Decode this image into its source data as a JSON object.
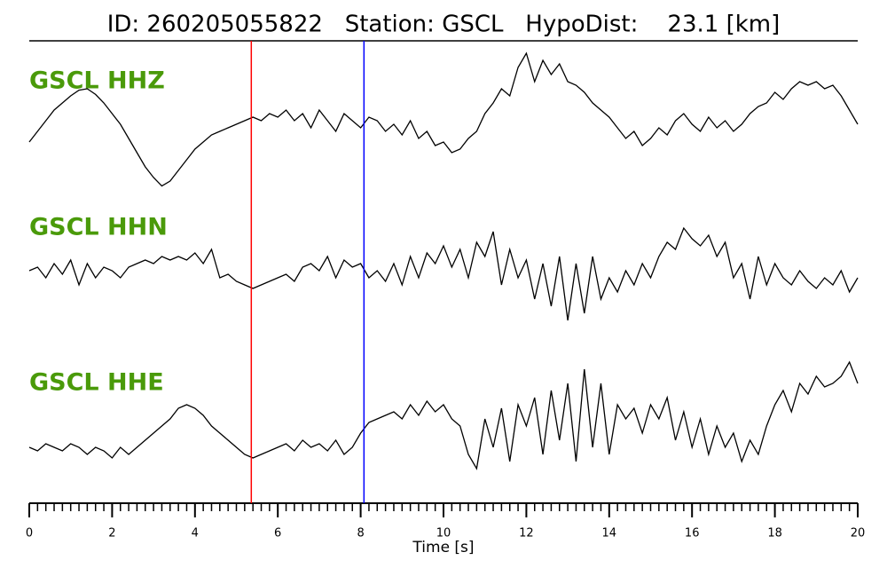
{
  "chart_data": {
    "type": "line",
    "title": "ID: 260205055822   Station: GSCL   HypoDist:    23.1 [km]",
    "xlabel": "Time [s]",
    "xlim": [
      0,
      20
    ],
    "xticks": [
      0,
      2,
      4,
      6,
      8,
      10,
      12,
      14,
      16,
      18,
      20
    ],
    "xminor_step": 0.2,
    "ylim": [
      -1,
      1
    ],
    "label_color": "#4a9a0a",
    "x": [
      0,
      0.2,
      0.4,
      0.6,
      0.8,
      1,
      1.2,
      1.4,
      1.6,
      1.8,
      2,
      2.2,
      2.4,
      2.6,
      2.8,
      3,
      3.2,
      3.4,
      3.6,
      3.8,
      4,
      4.2,
      4.4,
      4.6,
      4.8,
      5,
      5.2,
      5.4,
      5.6,
      5.8,
      6,
      6.2,
      6.4,
      6.6,
      6.8,
      7,
      7.2,
      7.4,
      7.6,
      7.8,
      8,
      8.2,
      8.4,
      8.6,
      8.8,
      9,
      9.2,
      9.4,
      9.6,
      9.8,
      10,
      10.2,
      10.4,
      10.6,
      10.8,
      11,
      11.2,
      11.4,
      11.6,
      11.8,
      12,
      12.2,
      12.4,
      12.6,
      12.8,
      13,
      13.2,
      13.4,
      13.6,
      13.8,
      14,
      14.2,
      14.4,
      14.6,
      14.8,
      15,
      15.2,
      15.4,
      15.6,
      15.8,
      16,
      16.2,
      16.4,
      16.6,
      16.8,
      17,
      17.2,
      17.4,
      17.6,
      17.8,
      18,
      18.2,
      18.4,
      18.6,
      18.8,
      19,
      19.2,
      19.4,
      19.6,
      19.8,
      20
    ],
    "series": [
      {
        "name": "GSCL HHZ",
        "color": "#000000",
        "values": [
          -0.25,
          -0.1,
          0.05,
          0.2,
          0.3,
          0.4,
          0.48,
          0.5,
          0.42,
          0.3,
          0.15,
          0,
          -0.2,
          -0.4,
          -0.6,
          -0.75,
          -0.87,
          -0.8,
          -0.65,
          -0.5,
          -0.35,
          -0.25,
          -0.15,
          -0.1,
          -0.05,
          0,
          0.05,
          0.1,
          0.05,
          0.15,
          0.1,
          0.2,
          0.05,
          0.15,
          -0.05,
          0.2,
          0.05,
          -0.1,
          0.15,
          0.05,
          -0.05,
          0.1,
          0.05,
          -0.1,
          0,
          -0.15,
          0.05,
          -0.2,
          -0.1,
          -0.3,
          -0.25,
          -0.4,
          -0.35,
          -0.2,
          -0.1,
          0.15,
          0.3,
          0.5,
          0.4,
          0.8,
          1,
          0.6,
          0.9,
          0.7,
          0.85,
          0.6,
          0.55,
          0.45,
          0.3,
          0.2,
          0.1,
          -0.05,
          -0.2,
          -0.1,
          -0.3,
          -0.2,
          -0.05,
          -0.15,
          0.05,
          0.15,
          0,
          -0.1,
          0.1,
          -0.05,
          0.05,
          -0.1,
          0,
          0.15,
          0.25,
          0.3,
          0.45,
          0.35,
          0.5,
          0.6,
          0.55,
          0.6,
          0.5,
          0.55,
          0.4,
          0.2,
          0
        ]
      },
      {
        "name": "GSCL HHN",
        "color": "#000000",
        "values": [
          0,
          0.05,
          -0.1,
          0.1,
          -0.05,
          0.15,
          -0.2,
          0.1,
          -0.1,
          0.05,
          0,
          -0.1,
          0.05,
          0.1,
          0.15,
          0.1,
          0.2,
          0.15,
          0.2,
          0.15,
          0.25,
          0.1,
          0.3,
          -0.1,
          -0.05,
          -0.15,
          -0.2,
          -0.25,
          -0.2,
          -0.15,
          -0.1,
          -0.05,
          -0.15,
          0.05,
          0.1,
          0,
          0.2,
          -0.1,
          0.15,
          0.05,
          0.1,
          -0.1,
          0,
          -0.15,
          0.1,
          -0.2,
          0.2,
          -0.1,
          0.25,
          0.1,
          0.35,
          0.05,
          0.3,
          -0.1,
          0.4,
          0.2,
          0.55,
          -0.2,
          0.3,
          -0.1,
          0.15,
          -0.4,
          0.1,
          -0.5,
          0.2,
          -0.7,
          0.1,
          -0.6,
          0.2,
          -0.4,
          -0.1,
          -0.3,
          0,
          -0.2,
          0.1,
          -0.1,
          0.2,
          0.4,
          0.3,
          0.6,
          0.45,
          0.35,
          0.5,
          0.2,
          0.4,
          -0.1,
          0.1,
          -0.4,
          0.2,
          -0.2,
          0.1,
          -0.1,
          -0.2,
          0,
          -0.15,
          -0.25,
          -0.1,
          -0.2,
          0,
          -0.3,
          -0.1
        ]
      },
      {
        "name": "GSCL HHE",
        "color": "#000000",
        "values": [
          -0.3,
          -0.35,
          -0.25,
          -0.3,
          -0.35,
          -0.25,
          -0.3,
          -0.4,
          -0.3,
          -0.35,
          -0.45,
          -0.3,
          -0.4,
          -0.3,
          -0.2,
          -0.1,
          0,
          0.1,
          0.25,
          0.3,
          0.25,
          0.15,
          0,
          -0.1,
          -0.2,
          -0.3,
          -0.4,
          -0.45,
          -0.4,
          -0.35,
          -0.3,
          -0.25,
          -0.35,
          -0.2,
          -0.3,
          -0.25,
          -0.35,
          -0.2,
          -0.4,
          -0.3,
          -0.1,
          0.05,
          0.1,
          0.15,
          0.2,
          0.1,
          0.3,
          0.15,
          0.35,
          0.2,
          0.3,
          0.1,
          0,
          -0.4,
          -0.6,
          0.1,
          -0.3,
          0.25,
          -0.5,
          0.3,
          0,
          0.4,
          -0.4,
          0.5,
          -0.2,
          0.6,
          -0.5,
          0.8,
          -0.3,
          0.6,
          -0.4,
          0.3,
          0.1,
          0.25,
          -0.1,
          0.3,
          0.1,
          0.4,
          -0.2,
          0.2,
          -0.3,
          0.1,
          -0.4,
          0,
          -0.3,
          -0.1,
          -0.5,
          -0.2,
          -0.4,
          0,
          0.3,
          0.5,
          0.2,
          0.6,
          0.45,
          0.7,
          0.55,
          0.6,
          0.7,
          0.9,
          0.6
        ]
      }
    ],
    "markers": [
      {
        "x": 5.36,
        "color": "#ff0000"
      },
      {
        "x": 8.08,
        "color": "#0000ff"
      }
    ]
  }
}
